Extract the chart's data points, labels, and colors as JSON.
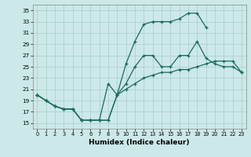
{
  "xlabel": "Humidex (Indice chaleur)",
  "background_color": "#cce8e8",
  "grid_color": "#aacccc",
  "line_color": "#1a6b5a",
  "xlim": [
    -0.5,
    23.5
  ],
  "ylim": [
    14,
    36
  ],
  "yticks": [
    15,
    17,
    19,
    21,
    23,
    25,
    27,
    29,
    31,
    33,
    35
  ],
  "xticks": [
    0,
    1,
    2,
    3,
    4,
    5,
    6,
    7,
    8,
    9,
    10,
    11,
    12,
    13,
    14,
    15,
    16,
    17,
    18,
    19,
    20,
    21,
    22,
    23
  ],
  "line1_x": [
    0,
    1,
    2,
    3,
    4,
    5,
    6,
    7,
    8,
    9,
    10,
    11,
    12,
    13,
    14,
    15,
    16,
    17,
    18,
    19,
    20,
    21,
    22,
    23
  ],
  "line1_y": [
    20,
    19,
    18,
    17.5,
    17.5,
    15.5,
    15.5,
    15.5,
    22,
    20,
    25.5,
    29.5,
    32.5,
    33,
    33,
    33,
    33.5,
    34.5,
    34.5,
    32,
    null,
    null,
    null,
    null
  ],
  "line2_x": [
    0,
    1,
    2,
    3,
    4,
    5,
    6,
    7,
    8,
    9,
    10,
    11,
    12,
    13,
    14,
    15,
    16,
    17,
    18,
    19,
    20,
    21,
    22,
    23
  ],
  "line2_y": [
    20,
    19,
    18,
    17.5,
    17.5,
    15.5,
    15.5,
    15.5,
    15.5,
    20,
    22,
    25,
    27,
    27,
    25,
    25,
    27,
    27,
    29.5,
    26.5,
    25.5,
    25,
    25,
    24
  ],
  "line3_x": [
    0,
    1,
    2,
    3,
    4,
    5,
    6,
    7,
    8,
    9,
    10,
    11,
    12,
    13,
    14,
    15,
    16,
    17,
    18,
    19,
    20,
    21,
    22,
    23
  ],
  "line3_y": [
    20,
    19,
    18,
    17.5,
    17.5,
    15.5,
    15.5,
    15.5,
    15.5,
    20,
    21,
    22,
    23,
    23.5,
    24,
    24,
    24.5,
    24.5,
    25,
    25.5,
    26,
    26,
    26,
    24
  ]
}
